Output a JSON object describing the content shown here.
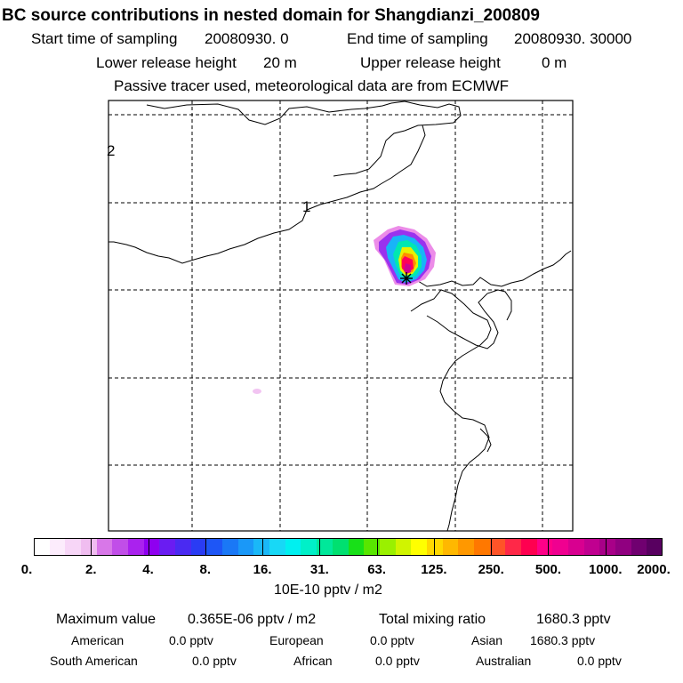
{
  "title": "BC  source contributions in nested domain for Shangdianzi_200809",
  "header": {
    "start_label": "Start time of sampling",
    "start_value": "20080930.     0",
    "end_label": "End time of sampling",
    "end_value": "20080930. 30000",
    "lower_label": "Lower release height",
    "lower_value": "20 m",
    "upper_label": "Upper release height",
    "upper_value": "0 m",
    "note": "Passive tracer used, meteorological data are from ECMWF"
  },
  "map": {
    "labels": [
      "2",
      "1"
    ],
    "receptor_marker": "star-icon"
  },
  "colorbar": {
    "unit": "10E-10 pptv / m2",
    "tick_labels": [
      "0.",
      "2.",
      "4.",
      "8.",
      "16.",
      "31.",
      "63.",
      "125.",
      "250.",
      "500.",
      "1000.",
      "2000."
    ],
    "colors": [
      "#ffffff",
      "#fcecfc",
      "#f7d6f7",
      "#f0bdf0",
      "#d877e8",
      "#c14ee8",
      "#aa22ee",
      "#8f00f0",
      "#6a1cf2",
      "#4a2af2",
      "#2a3cf4",
      "#1e56f6",
      "#1a78f6",
      "#1a98f8",
      "#1ab8f8",
      "#18d8f6",
      "#00f0f0",
      "#00f0c8",
      "#00e89a",
      "#00e070",
      "#18e018",
      "#58e600",
      "#9af000",
      "#d0f400",
      "#ffff00",
      "#ffd800",
      "#ffb800",
      "#ff9800",
      "#ff7800",
      "#ff5428",
      "#ff2848",
      "#ff0050",
      "#ff0088",
      "#f00090",
      "#d80090",
      "#c00090",
      "#a80088",
      "#900080",
      "#700070",
      "#580060"
    ]
  },
  "stats": {
    "max_label": "Maximum value",
    "max_value": "0.365E-06 pptv / m2",
    "total_label": "Total mixing ratio",
    "total_value": "1680.3 pptv",
    "regions_row1": [
      {
        "name": "American",
        "value": "0.0 pptv"
      },
      {
        "name": "European",
        "value": "0.0 pptv"
      },
      {
        "name": "Asian",
        "value": "1680.3 pptv"
      }
    ],
    "regions_row2": [
      {
        "name": "South American",
        "value": "0.0 pptv"
      },
      {
        "name": "African",
        "value": "0.0 pptv"
      },
      {
        "name": "Australian",
        "value": "0.0 pptv"
      }
    ]
  }
}
